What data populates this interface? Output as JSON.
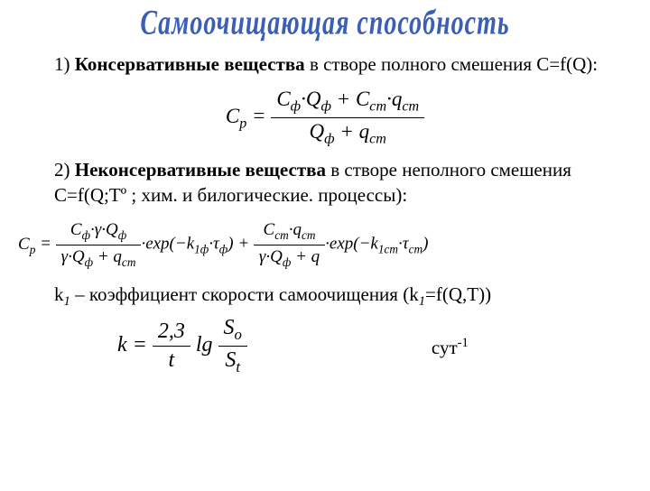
{
  "title": {
    "text": "Самоочищающая способность",
    "color": "#3b5fb5",
    "fontsize": 28
  },
  "section1": {
    "label_prefix": "1) ",
    "label_bold": "Консервативные вещества",
    "label_tail": " в створе полного смешения С=f(Q):",
    "fontsize": 21
  },
  "formula1": {
    "lhs": "C",
    "lhs_sub": "р",
    "num_parts": [
      "C",
      "ф",
      "·Q",
      "ф",
      " + C",
      "ст",
      "·q",
      "ст"
    ],
    "den_parts": [
      "Q",
      "ф",
      " + q",
      "ст"
    ],
    "fontsize": 23
  },
  "section2": {
    "label_prefix": "2) ",
    "label_bold": "Неконсервативные вещества",
    "label_tail": " в створе неполного смешения С=f(Q;Tº ; хим. и билогические. процессы):",
    "fontsize": 21
  },
  "formula2": {
    "lhs": "C",
    "lhs_sub": "р",
    "frac1_num": [
      "C",
      "ф",
      "·γ·Q",
      "ф"
    ],
    "frac1_den": [
      "γ·Q",
      "ф",
      " + q",
      "ст"
    ],
    "exp1_pre": "·exp(−k",
    "exp1_sub": "1ф",
    "exp1_mid": "·τ",
    "exp1_sub2": "ф",
    "exp1_post": ") + ",
    "frac2_num": [
      "C",
      "ст",
      "·q",
      "ст"
    ],
    "frac2_den": [
      "γ·Q",
      "ф",
      " + q"
    ],
    "exp2_pre": "·exp(−k",
    "exp2_sub": "1ст",
    "exp2_mid": "·τ",
    "exp2_sub2": "ст",
    "exp2_post": ")",
    "fontsize": 19
  },
  "note": {
    "text_pre": "k",
    "text_sub": "1",
    "text_mid": " – коэффициент скорости самоочищения (k",
    "text_sub2": "1",
    "text_post": "=f(Q,T))",
    "fontsize": 21
  },
  "formula3": {
    "lhs": "k = ",
    "frac_num": "2,3",
    "frac_den": "t",
    "mid": " lg ",
    "frac2_num": [
      "S",
      "o"
    ],
    "frac2_den": [
      "S",
      "t"
    ],
    "unit_pre": "сут",
    "unit_sup": "-1",
    "fontsize": 24
  },
  "colors": {
    "text": "#000000",
    "bg": "#ffffff"
  }
}
